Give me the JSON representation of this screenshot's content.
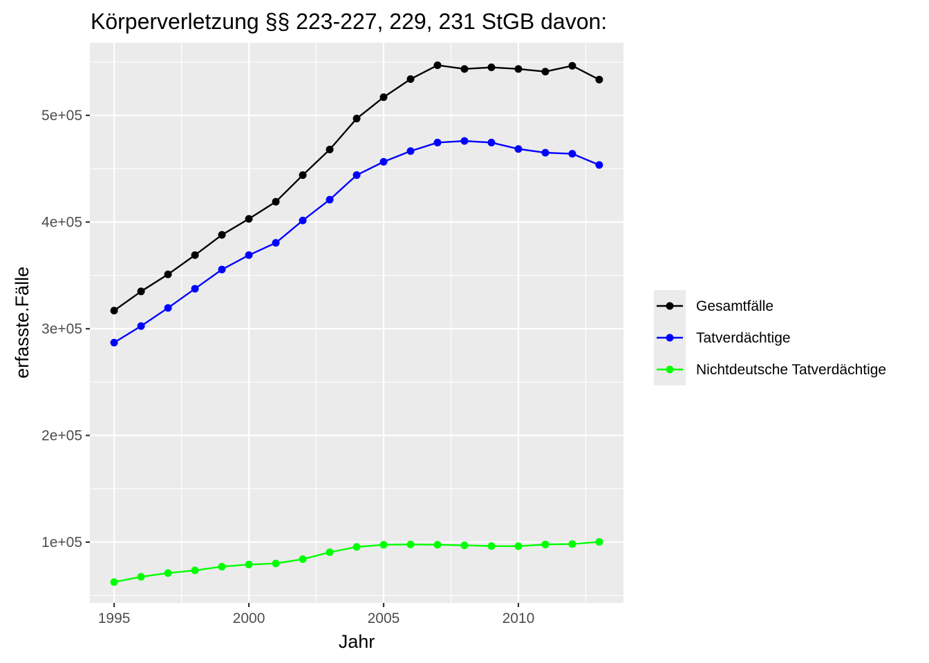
{
  "chart_data": {
    "type": "line",
    "title": "Körperverletzung §§ 223-227, 229, 231 StGB davon:",
    "xlabel": "Jahr",
    "ylabel": "erfasste.Fälle",
    "x": [
      1995,
      1996,
      1997,
      1998,
      1999,
      2000,
      2001,
      2002,
      2003,
      2004,
      2005,
      2006,
      2007,
      2008,
      2009,
      2010,
      2011,
      2012,
      2013
    ],
    "xlim": [
      1994.1,
      2013.9
    ],
    "ylim": [
      43000,
      568000
    ],
    "x_ticks": [
      1995,
      2000,
      2005,
      2010
    ],
    "x_tick_labels": [
      "1995",
      "2000",
      "2005",
      "2010"
    ],
    "y_ticks": [
      100000,
      200000,
      300000,
      400000,
      500000
    ],
    "y_tick_labels": [
      "1e+05",
      "2e+05",
      "3e+05",
      "4e+05",
      "5e+05"
    ],
    "grid": true,
    "legend_position": "right",
    "series": [
      {
        "name": "Gesamtfälle",
        "color": "#000000",
        "values": [
          317000,
          335000,
          351000,
          369000,
          388000,
          403000,
          419000,
          444000,
          468000,
          497000,
          517000,
          534000,
          547000,
          543500,
          545000,
          543500,
          541000,
          546500,
          533500
        ]
      },
      {
        "name": "Tatverdächtige",
        "color": "#0000ff",
        "values": [
          287000,
          302500,
          319500,
          337500,
          355500,
          369000,
          380500,
          401500,
          421000,
          444000,
          456500,
          466500,
          474500,
          476000,
          474500,
          468500,
          465000,
          464000,
          453500
        ]
      },
      {
        "name": "Nichtdeutsche Tatverdächtige",
        "color": "#00ff00",
        "values": [
          62500,
          67500,
          71000,
          73500,
          77000,
          79000,
          80000,
          84000,
          90500,
          95500,
          97500,
          97800,
          97500,
          97000,
          96300,
          96200,
          97800,
          98200,
          100200
        ]
      }
    ]
  }
}
